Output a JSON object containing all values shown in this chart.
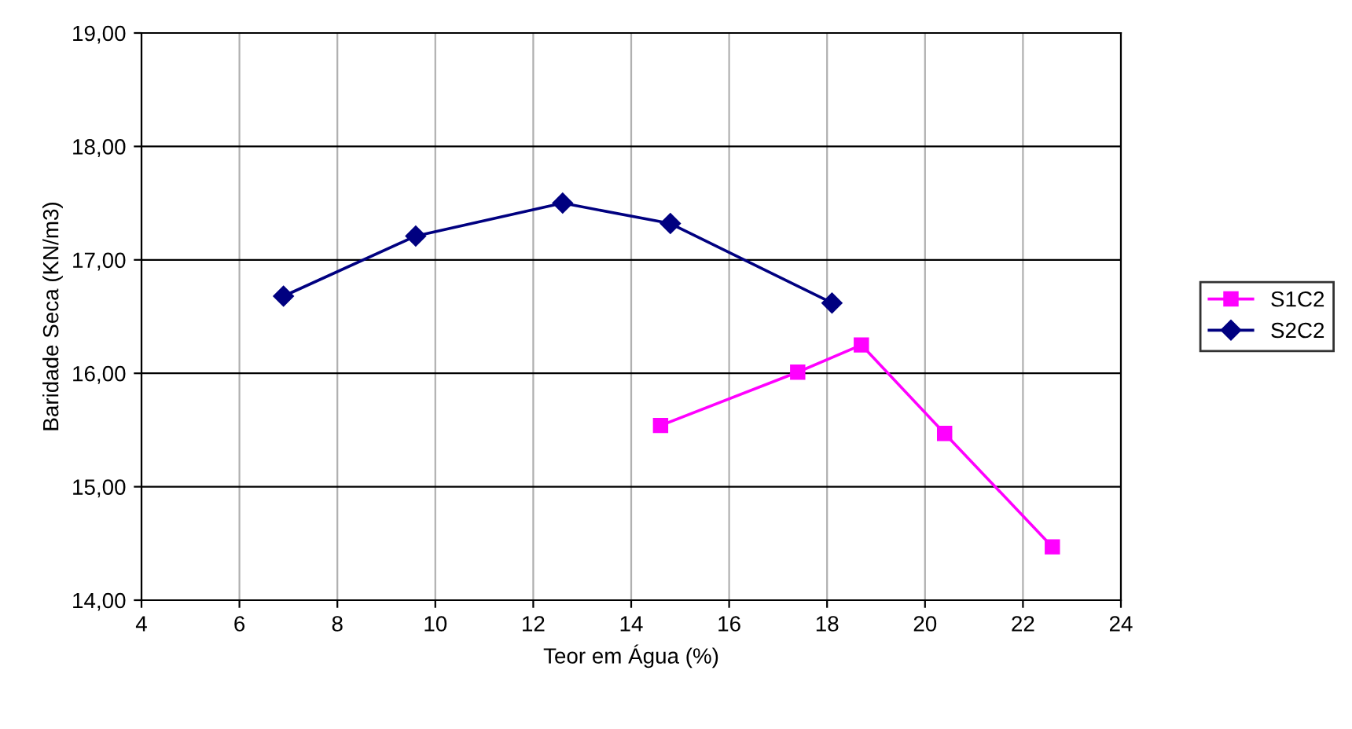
{
  "chart_data": {
    "type": "line",
    "xlabel": "Teor em Água (%)",
    "ylabel": "Baridade Seca (KN/m3)",
    "xlim": [
      4,
      24
    ],
    "xticks": [
      4,
      6,
      8,
      10,
      12,
      14,
      16,
      18,
      20,
      22,
      24
    ],
    "ylim": [
      14,
      19
    ],
    "yticks": [
      {
        "value": 14,
        "label": "14,00"
      },
      {
        "value": 15,
        "label": "15,00"
      },
      {
        "value": 16,
        "label": "16,00"
      },
      {
        "value": 17,
        "label": "17,00"
      },
      {
        "value": 18,
        "label": "18,00"
      },
      {
        "value": 19,
        "label": "19,00"
      }
    ],
    "grid": true,
    "legend": "right",
    "series": [
      {
        "name": "S1C2",
        "color": "#ff00ff",
        "marker": "square",
        "x": [
          14.6,
          17.4,
          18.7,
          20.4,
          22.6
        ],
        "values": [
          15.54,
          16.01,
          16.25,
          15.47,
          14.47
        ]
      },
      {
        "name": "S2C2",
        "color": "#000080",
        "marker": "diamond",
        "x": [
          6.9,
          9.6,
          12.6,
          14.8,
          18.1
        ],
        "values": [
          16.68,
          17.21,
          17.5,
          17.32,
          16.62
        ]
      }
    ]
  }
}
